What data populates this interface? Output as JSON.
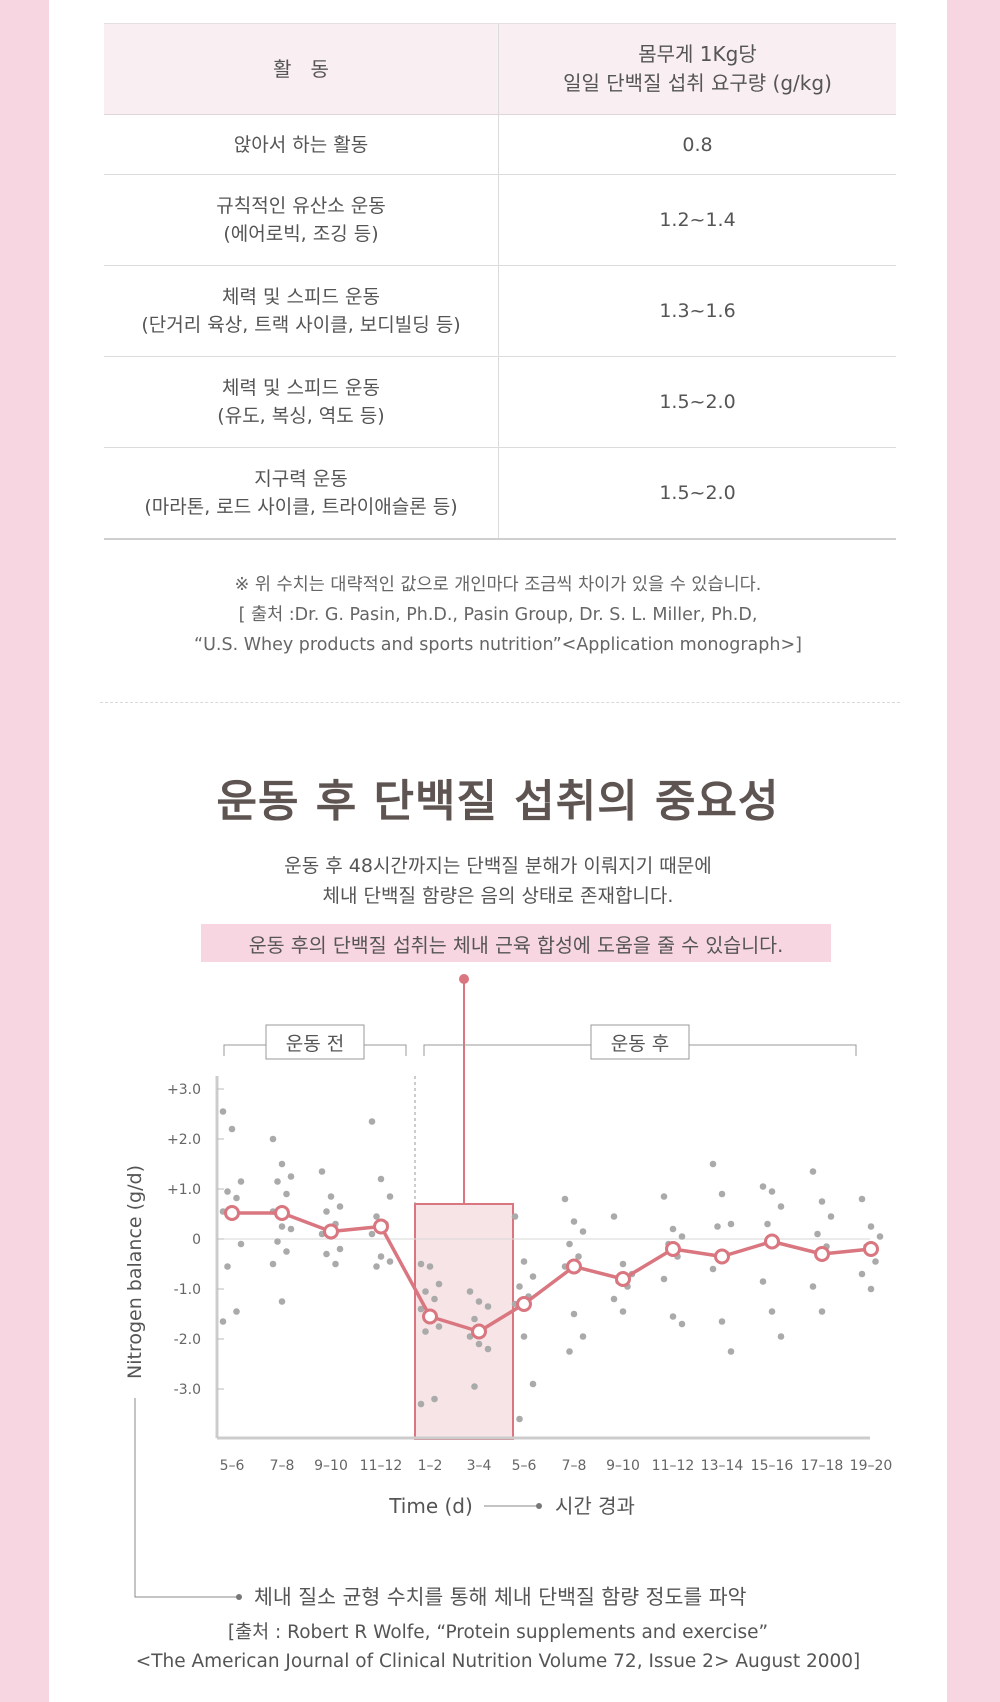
{
  "table": {
    "header": {
      "activity": "활   동",
      "requirement_line1": "몸무게 1Kg당",
      "requirement_line2": "일일 단백질 섭취 요구량 (g/kg)"
    },
    "rows": [
      {
        "activity": [
          "앉아서 하는 활동"
        ],
        "value": "0.8"
      },
      {
        "activity": [
          "규칙적인 유산소 운동",
          "(에어로빅, 조깅 등)"
        ],
        "value": "1.2~1.4"
      },
      {
        "activity": [
          "체력 및 스피드 운동",
          "(단거리 육상, 트랙 사이클, 보디빌딩 등)"
        ],
        "value": "1.3~1.6"
      },
      {
        "activity": [
          "체력 및 스피드 운동",
          "(유도, 복싱, 역도 등)"
        ],
        "value": "1.5~2.0"
      },
      {
        "activity": [
          "지구력 운동",
          "(마라톤, 로드 사이클, 트라이애슬론 등)"
        ],
        "value": "1.5~2.0"
      }
    ]
  },
  "note": {
    "line1": "※ 위 수치는 대략적인 값으로 개인마다 조금씩 차이가 있을 수 있습니다.",
    "line2": "[ 출처 :Dr. G. Pasin, Ph.D., Pasin Group, Dr. S. L. Miller, Ph.D,",
    "line3": "“U.S. Whey products and sports nutrition”<Application monograph>]"
  },
  "section": {
    "title": "운동 후 단백질 섭취의 중요성",
    "desc_line1": "운동 후 48시간까지는 단백질 분해가 이뤄지기 때문에",
    "desc_line2": "체내 단백질 함량은 음의 상태로 존재합니다.",
    "highlight": "운동 후의 단백질 섭취는 체내 근육 합성에 도움을 줄 수 있습니다."
  },
  "chart_data": {
    "type": "scatter",
    "ylabel": "Nitrogen balance (g/d)",
    "xlabel": "Time (d)",
    "xlabel_note": "시간 경과",
    "ylabel_note": "체내 질소 균형 수치를 통해 체내 단백질 함량 정도를 파악",
    "group_labels": {
      "before": "운동 전",
      "after": "운동 후"
    },
    "yticks": [
      "+3.0",
      "+2.0",
      "+1.0",
      "0",
      "-1.0",
      "-2.0",
      "-3.0"
    ],
    "ylim": [
      -4.0,
      3.2
    ],
    "colors": {
      "mean": "#d9767f",
      "points": "#aaaaaa",
      "highlight_fill": "#f6e4e7"
    },
    "periods": [
      {
        "label": "5–6",
        "mean": 0.52,
        "points": [
          2.55,
          2.2,
          1.15,
          0.95,
          0.82,
          0.55,
          0.5,
          -0.1,
          -0.55,
          -1.45,
          -1.65
        ]
      },
      {
        "label": "7–8",
        "mean": 0.52,
        "points": [
          2.0,
          1.5,
          1.25,
          1.15,
          0.9,
          0.55,
          0.25,
          0.2,
          -0.05,
          -0.25,
          -0.5,
          -1.25
        ]
      },
      {
        "label": "9–10",
        "mean": 0.15,
        "points": [
          1.35,
          0.85,
          0.65,
          0.55,
          0.3,
          0.1,
          0.05,
          -0.2,
          -0.3,
          -0.5
        ]
      },
      {
        "label": "11–12",
        "mean": 0.25,
        "points": [
          2.35,
          1.2,
          0.85,
          0.45,
          0.3,
          0.1,
          -0.35,
          -0.45,
          -0.55
        ]
      },
      {
        "label": "1–2",
        "mean": -1.55,
        "points": [
          -0.5,
          -0.55,
          -0.9,
          -1.05,
          -1.2,
          -1.4,
          -1.6,
          -1.75,
          -1.85,
          -3.2,
          -3.3
        ]
      },
      {
        "label": "3–4",
        "mean": -1.85,
        "points": [
          -1.05,
          -1.25,
          -1.35,
          -1.6,
          -1.8,
          -1.95,
          -2.1,
          -2.2,
          -2.95
        ]
      },
      {
        "label": "5–6",
        "mean": -1.3,
        "points": [
          0.45,
          -0.45,
          -0.75,
          -0.95,
          -1.15,
          -1.3,
          -1.95,
          -2.9,
          -3.6
        ]
      },
      {
        "label": "7–8",
        "mean": -0.55,
        "points": [
          0.8,
          0.35,
          0.15,
          -0.1,
          -0.35,
          -0.55,
          -1.5,
          -1.95,
          -2.25
        ]
      },
      {
        "label": "9–10",
        "mean": -0.8,
        "points": [
          0.45,
          -0.5,
          -0.7,
          -0.85,
          -0.95,
          -1.2,
          -1.45
        ]
      },
      {
        "label": "11–12",
        "mean": -0.2,
        "points": [
          0.85,
          0.2,
          0.05,
          -0.1,
          -0.35,
          -0.8,
          -1.55,
          -1.7
        ]
      },
      {
        "label": "13–14",
        "mean": -0.35,
        "points": [
          1.5,
          0.9,
          0.3,
          0.25,
          -0.3,
          -0.6,
          -1.65,
          -2.25
        ]
      },
      {
        "label": "15–16",
        "mean": -0.05,
        "points": [
          1.05,
          0.95,
          0.65,
          0.3,
          -0.1,
          -0.85,
          -1.45,
          -1.95
        ]
      },
      {
        "label": "17–18",
        "mean": -0.3,
        "points": [
          1.35,
          0.75,
          0.45,
          0.1,
          -0.15,
          -0.95,
          -1.45
        ]
      },
      {
        "label": "19–20",
        "mean": -0.2,
        "points": [
          0.8,
          0.25,
          0.05,
          -0.15,
          -0.45,
          -0.7,
          -1.0
        ]
      }
    ]
  },
  "source": {
    "line1": "[출처 : Robert R Wolfe, “Protein supplements and exercise”",
    "line2": "<The American Journal of Clinical Nutrition Volume 72, Issue 2> August 2000]"
  }
}
